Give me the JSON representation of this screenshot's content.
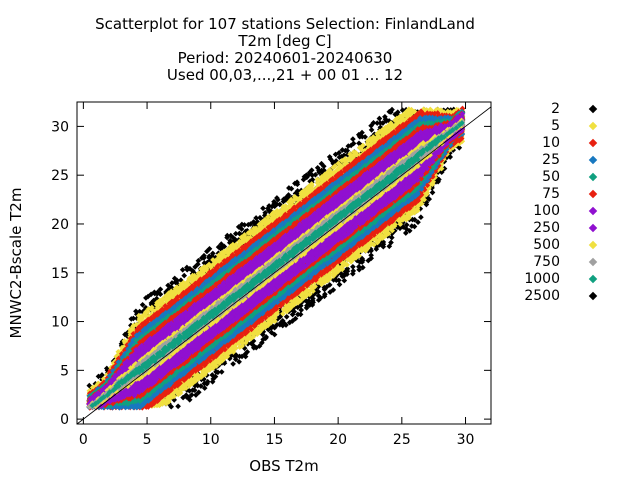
{
  "chart_data": {
    "type": "scatter",
    "title_lines": [
      "Scatterplot for  107 stations Selection: FinlandLand",
      "T2m [deg C]",
      "Period: 20240601-20240630",
      "Used 00,03,...,21 + 00 01 ... 12"
    ],
    "xlabel": "OBS T2m",
    "ylabel": "MNWC2-Bscale T2m",
    "xlim": [
      -0.5,
      32
    ],
    "ylim": [
      -0.5,
      32.5
    ],
    "xticks": [
      "0",
      "5",
      "10",
      "15",
      "20",
      "25",
      "30"
    ],
    "yticks": [
      "0",
      "5",
      "10",
      "15",
      "20",
      "25",
      "30"
    ],
    "diagonal": true,
    "legend": [
      {
        "label": "2",
        "color": "#000000"
      },
      {
        "label": "5",
        "color": "#f0e040"
      },
      {
        "label": "10",
        "color": "#e82010"
      },
      {
        "label": "25",
        "color": "#1878c0"
      },
      {
        "label": "50",
        "color": "#10a080"
      },
      {
        "label": "75",
        "color": "#e82010"
      },
      {
        "label": "100",
        "color": "#9010d0"
      },
      {
        "label": "250",
        "color": "#9010d0"
      },
      {
        "label": "500",
        "color": "#f0e040"
      },
      {
        "label": "750",
        "color": "#a0a0a0"
      },
      {
        "label": "1000",
        "color": "#10a080"
      },
      {
        "label": "2500",
        "color": "#000000"
      }
    ],
    "density_bands": [
      {
        "min_count": 2,
        "color": "#000000",
        "halfwidth": 7.0
      },
      {
        "min_count": 5,
        "color": "#f0e040",
        "halfwidth": 5.6
      },
      {
        "min_count": 10,
        "color": "#e82010",
        "halfwidth": 4.6
      },
      {
        "min_count": 25,
        "color": "#1878c0",
        "halfwidth": 3.9
      },
      {
        "min_count": 50,
        "color": "#10a080",
        "halfwidth": 3.3
      },
      {
        "min_count": 75,
        "color": "#e82010",
        "halfwidth": 2.8
      },
      {
        "min_count": 100,
        "color": "#9010d0",
        "halfwidth": 2.4
      },
      {
        "min_count": 250,
        "color": "#9010d0",
        "halfwidth": 1.7
      },
      {
        "min_count": 500,
        "color": "#f0e040",
        "halfwidth": 1.0
      },
      {
        "min_count": 750,
        "color": "#a0a0a0",
        "halfwidth": 0.6
      },
      {
        "min_count": 1000,
        "color": "#10a080",
        "halfwidth": 0.3
      }
    ]
  }
}
